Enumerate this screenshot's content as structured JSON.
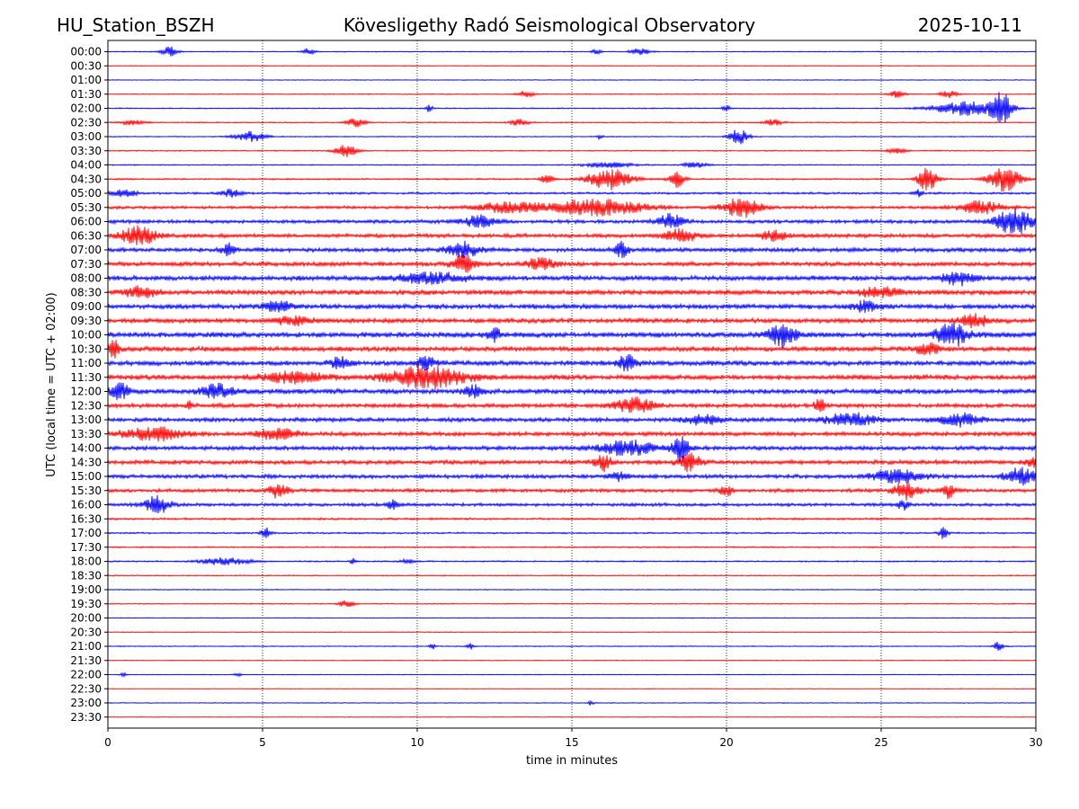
{
  "chart_data": {
    "type": "line",
    "station": "HU_Station_BSZH",
    "title": "Kövesligethy Radó Seismological Observatory",
    "date": "2025-10-11",
    "xlabel": "time in minutes",
    "ylabel": "UTC (local time = UTC + 02:00)",
    "xlim": [
      0,
      30
    ],
    "x_ticks": [
      0,
      5,
      10,
      15,
      20,
      25,
      30
    ],
    "x_gridlines": [
      5,
      10,
      15,
      20,
      25
    ],
    "trace_colors": [
      "#0000ff",
      "#ff0000"
    ],
    "rows": [
      {
        "label": "00:00",
        "noise": 0.6,
        "events": [
          [
            2.0,
            0.25,
            6
          ],
          [
            6.5,
            0.2,
            4
          ],
          [
            17.2,
            0.3,
            4
          ],
          [
            15.8,
            0.15,
            3
          ]
        ]
      },
      {
        "label": "00:30",
        "noise": 0.5,
        "events": []
      },
      {
        "label": "01:00",
        "noise": 0.5,
        "events": []
      },
      {
        "label": "01:30",
        "noise": 0.6,
        "events": [
          [
            13.5,
            0.25,
            4
          ],
          [
            25.5,
            0.25,
            4
          ],
          [
            27.2,
            0.3,
            4
          ]
        ]
      },
      {
        "label": "02:00",
        "noise": 0.7,
        "events": [
          [
            10.4,
            0.1,
            5
          ],
          [
            20.0,
            0.15,
            3
          ],
          [
            28.9,
            0.3,
            18
          ],
          [
            27.8,
            1.1,
            8
          ]
        ]
      },
      {
        "label": "02:30",
        "noise": 0.7,
        "events": [
          [
            8.0,
            0.3,
            5
          ],
          [
            13.3,
            0.3,
            4
          ],
          [
            21.5,
            0.3,
            4
          ],
          [
            0.8,
            0.4,
            3
          ]
        ]
      },
      {
        "label": "03:00",
        "noise": 0.6,
        "events": [
          [
            4.6,
            0.5,
            6
          ],
          [
            20.4,
            0.3,
            9
          ],
          [
            15.9,
            0.1,
            3
          ]
        ]
      },
      {
        "label": "03:30",
        "noise": 0.7,
        "events": [
          [
            7.7,
            0.35,
            7
          ],
          [
            25.5,
            0.3,
            3
          ]
        ]
      },
      {
        "label": "04:00",
        "noise": 0.7,
        "events": [
          [
            16.2,
            0.8,
            3
          ],
          [
            19.0,
            0.4,
            3
          ]
        ]
      },
      {
        "label": "04:30",
        "noise": 1.0,
        "events": [
          [
            16.2,
            0.7,
            12
          ],
          [
            18.4,
            0.25,
            9
          ],
          [
            26.5,
            0.3,
            14
          ],
          [
            29.0,
            0.5,
            14
          ],
          [
            14.2,
            0.2,
            6
          ]
        ]
      },
      {
        "label": "05:00",
        "noise": 1.3,
        "events": [
          [
            4.0,
            0.3,
            5
          ],
          [
            0.5,
            0.4,
            4
          ],
          [
            26.2,
            0.15,
            4
          ]
        ]
      },
      {
        "label": "05:30",
        "noise": 1.8,
        "events": [
          [
            20.5,
            0.6,
            11
          ],
          [
            15.8,
            1.5,
            9
          ],
          [
            28.2,
            0.7,
            7
          ],
          [
            13.0,
            1.0,
            6
          ]
        ]
      },
      {
        "label": "06:00",
        "noise": 2.2,
        "events": [
          [
            29.3,
            0.6,
            14
          ],
          [
            18.2,
            0.4,
            8
          ],
          [
            12.0,
            0.5,
            7
          ]
        ]
      },
      {
        "label": "06:30",
        "noise": 2.4,
        "events": [
          [
            1.0,
            0.6,
            10
          ],
          [
            18.5,
            0.5,
            7
          ],
          [
            21.5,
            0.4,
            6
          ]
        ]
      },
      {
        "label": "07:00",
        "noise": 2.6,
        "events": [
          [
            11.5,
            0.5,
            8
          ],
          [
            16.6,
            0.2,
            9
          ],
          [
            3.9,
            0.2,
            7
          ]
        ]
      },
      {
        "label": "07:30",
        "noise": 2.6,
        "events": [
          [
            11.5,
            0.4,
            10
          ],
          [
            14.0,
            0.5,
            6
          ]
        ]
      },
      {
        "label": "08:00",
        "noise": 3.0,
        "events": [
          [
            27.5,
            0.5,
            7
          ],
          [
            10.5,
            1.0,
            6
          ]
        ]
      },
      {
        "label": "08:30",
        "noise": 3.0,
        "events": [
          [
            1.0,
            0.5,
            6
          ],
          [
            25.0,
            0.6,
            6
          ]
        ]
      },
      {
        "label": "09:00",
        "noise": 3.0,
        "events": [
          [
            5.5,
            0.4,
            6
          ],
          [
            24.5,
            0.4,
            6
          ]
        ]
      },
      {
        "label": "09:30",
        "noise": 3.0,
        "events": [
          [
            6.0,
            0.5,
            5
          ],
          [
            28.0,
            0.5,
            6
          ]
        ]
      },
      {
        "label": "10:00",
        "noise": 3.3,
        "events": [
          [
            21.8,
            0.4,
            13
          ],
          [
            27.3,
            0.5,
            13
          ],
          [
            12.5,
            0.2,
            8
          ]
        ]
      },
      {
        "label": "10:30",
        "noise": 3.0,
        "events": [
          [
            0.2,
            0.15,
            10
          ],
          [
            26.5,
            0.4,
            6
          ]
        ]
      },
      {
        "label": "11:00",
        "noise": 3.0,
        "events": [
          [
            16.8,
            0.3,
            9
          ],
          [
            7.5,
            0.3,
            6
          ],
          [
            10.3,
            0.3,
            7
          ]
        ]
      },
      {
        "label": "11:30",
        "noise": 3.0,
        "events": [
          [
            10.3,
            1.2,
            13
          ],
          [
            6.0,
            1.0,
            6
          ]
        ]
      },
      {
        "label": "12:00",
        "noise": 3.0,
        "events": [
          [
            3.5,
            0.5,
            8
          ],
          [
            0.4,
            0.3,
            8
          ],
          [
            11.8,
            0.3,
            6
          ]
        ]
      },
      {
        "label": "12:30",
        "noise": 2.6,
        "events": [
          [
            17.0,
            0.6,
            8
          ],
          [
            23.0,
            0.15,
            9
          ],
          [
            2.6,
            0.1,
            6
          ]
        ]
      },
      {
        "label": "13:00",
        "noise": 2.6,
        "events": [
          [
            24.0,
            0.8,
            7
          ],
          [
            27.5,
            0.6,
            7
          ],
          [
            19.2,
            0.5,
            6
          ]
        ]
      },
      {
        "label": "13:30",
        "noise": 2.6,
        "events": [
          [
            1.5,
            1.0,
            7
          ],
          [
            5.5,
            0.6,
            6
          ]
        ]
      },
      {
        "label": "14:00",
        "noise": 2.6,
        "events": [
          [
            18.5,
            0.25,
            16
          ],
          [
            16.8,
            0.8,
            9
          ]
        ]
      },
      {
        "label": "14:30",
        "noise": 2.6,
        "events": [
          [
            16.0,
            0.3,
            9
          ],
          [
            18.8,
            0.4,
            9
          ],
          [
            30.0,
            0.3,
            6
          ]
        ]
      },
      {
        "label": "15:00",
        "noise": 2.4,
        "events": [
          [
            29.5,
            0.5,
            9
          ],
          [
            25.5,
            0.8,
            7
          ],
          [
            16.5,
            0.3,
            5
          ]
        ]
      },
      {
        "label": "15:30",
        "noise": 2.2,
        "events": [
          [
            5.5,
            0.3,
            8
          ],
          [
            25.8,
            0.4,
            9
          ],
          [
            27.2,
            0.2,
            8
          ],
          [
            20.0,
            0.2,
            6
          ]
        ]
      },
      {
        "label": "16:00",
        "noise": 2.0,
        "events": [
          [
            1.6,
            0.4,
            10
          ],
          [
            9.2,
            0.15,
            7
          ],
          [
            25.7,
            0.15,
            7
          ]
        ]
      },
      {
        "label": "16:30",
        "noise": 1.3,
        "events": []
      },
      {
        "label": "17:00",
        "noise": 1.0,
        "events": [
          [
            5.1,
            0.15,
            6
          ],
          [
            27.0,
            0.15,
            6
          ]
        ]
      },
      {
        "label": "17:30",
        "noise": 0.9,
        "events": []
      },
      {
        "label": "18:00",
        "noise": 0.9,
        "events": [
          [
            3.8,
            0.8,
            4
          ],
          [
            7.9,
            0.08,
            4
          ],
          [
            9.7,
            0.2,
            3
          ]
        ]
      },
      {
        "label": "18:30",
        "noise": 0.7,
        "events": []
      },
      {
        "label": "19:00",
        "noise": 0.6,
        "events": []
      },
      {
        "label": "19:30",
        "noise": 0.6,
        "events": [
          [
            7.7,
            0.25,
            4
          ]
        ]
      },
      {
        "label": "20:00",
        "noise": 0.5,
        "events": []
      },
      {
        "label": "20:30",
        "noise": 0.5,
        "events": []
      },
      {
        "label": "21:00",
        "noise": 0.6,
        "events": [
          [
            28.8,
            0.15,
            6
          ],
          [
            11.7,
            0.1,
            4
          ],
          [
            10.5,
            0.1,
            3
          ]
        ]
      },
      {
        "label": "21:30",
        "noise": 0.5,
        "events": []
      },
      {
        "label": "22:00",
        "noise": 0.5,
        "events": [
          [
            0.5,
            0.1,
            2
          ],
          [
            4.2,
            0.1,
            3
          ]
        ]
      },
      {
        "label": "22:30",
        "noise": 0.4,
        "events": []
      },
      {
        "label": "23:00",
        "noise": 0.5,
        "events": [
          [
            15.6,
            0.1,
            3
          ]
        ]
      },
      {
        "label": "23:30",
        "noise": 0.4,
        "events": []
      }
    ]
  }
}
